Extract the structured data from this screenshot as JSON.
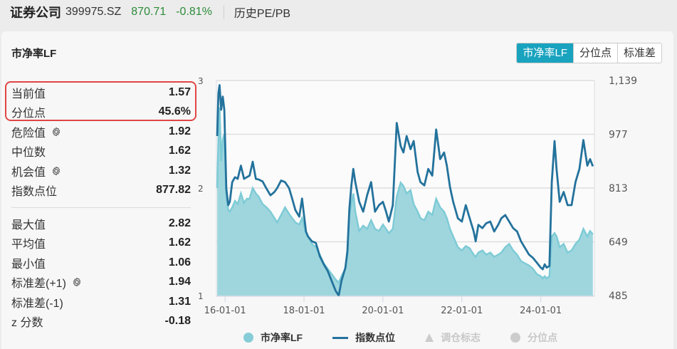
{
  "header": {
    "name": "证券公司",
    "code": "399975.SZ",
    "price": "870.71",
    "change": "-0.81%",
    "link": "历史PE/PB"
  },
  "card": {
    "title": "市净率LF",
    "tabs": [
      {
        "label": "市净率LF",
        "active": true
      },
      {
        "label": "分位点",
        "active": false
      },
      {
        "label": "标准差",
        "active": false
      }
    ]
  },
  "stats": {
    "top": [
      {
        "label": "当前值",
        "value": "1.57",
        "gear": false
      },
      {
        "label": "分位点",
        "value": "45.6%",
        "gear": false
      },
      {
        "label": "危险值",
        "value": "1.92",
        "gear": true
      },
      {
        "label": "中位数",
        "value": "1.62",
        "gear": false
      },
      {
        "label": "机会值",
        "value": "1.32",
        "gear": true
      },
      {
        "label": "指数点位",
        "value": "877.82",
        "gear": false
      }
    ],
    "bottom": [
      {
        "label": "最大值",
        "value": "2.82",
        "gear": false
      },
      {
        "label": "平均值",
        "value": "1.62",
        "gear": false
      },
      {
        "label": "最小值",
        "value": "1.06",
        "gear": false
      },
      {
        "label": "标准差(+1)",
        "value": "1.94",
        "gear": true
      },
      {
        "label": "标准差(-1)",
        "value": "1.31",
        "gear": false
      },
      {
        "label": "z 分数",
        "value": "-0.18",
        "gear": false
      }
    ]
  },
  "colors": {
    "pb_fill": "#9fd6de",
    "pb_line": "#7ecbd6",
    "index_line": "#23729c",
    "tab_active": "#19a3bf",
    "highlight": "#e24545",
    "grid": "#dedede"
  },
  "legend": [
    {
      "label": "市净率LF",
      "shape": "dot",
      "color": "#86cdd8",
      "enabled": true
    },
    {
      "label": "指数点位",
      "shape": "line",
      "color": "#23729c",
      "enabled": true
    },
    {
      "label": "调仓标志",
      "shape": "triangle",
      "color": "#cccccc",
      "enabled": false
    },
    {
      "label": "分位点",
      "shape": "dot",
      "color": "#cccccc",
      "enabled": false
    }
  ],
  "chart_data": {
    "type": "area",
    "title": "市净率LF",
    "x_ticks": [
      "16-01-01",
      "18-01-01",
      "20-01-01",
      "22-01-01",
      "24-01-01"
    ],
    "y_left": {
      "ticks": [
        "1",
        "2",
        "3"
      ],
      "range": [
        1,
        3
      ]
    },
    "y_right": {
      "ticks": [
        "485",
        "649",
        "813",
        "977",
        "1,139"
      ],
      "range": [
        485,
        1139
      ]
    },
    "grid": true,
    "legend_position": "bottom",
    "x_range": [
      "15-10",
      "25-05"
    ],
    "series": [
      {
        "name": "市净率LF",
        "axis": "left",
        "type": "area",
        "points": [
          [
            2015.8,
            2.0
          ],
          [
            2015.83,
            2.45
          ],
          [
            2015.86,
            2.75
          ],
          [
            2015.9,
            2.25
          ],
          [
            2015.94,
            2.45
          ],
          [
            2015.98,
            2.5
          ],
          [
            2016.03,
            1.92
          ],
          [
            2016.08,
            1.8
          ],
          [
            2016.12,
            1.78
          ],
          [
            2016.18,
            1.82
          ],
          [
            2016.25,
            1.88
          ],
          [
            2016.32,
            1.85
          ],
          [
            2016.4,
            1.95
          ],
          [
            2016.48,
            1.86
          ],
          [
            2016.55,
            1.9
          ],
          [
            2016.62,
            1.9
          ],
          [
            2016.7,
            2.0
          ],
          [
            2016.78,
            1.95
          ],
          [
            2016.85,
            1.92
          ],
          [
            2016.95,
            1.85
          ],
          [
            2017.05,
            1.82
          ],
          [
            2017.15,
            1.78
          ],
          [
            2017.25,
            1.72
          ],
          [
            2017.32,
            1.68
          ],
          [
            2017.42,
            1.75
          ],
          [
            2017.52,
            1.82
          ],
          [
            2017.62,
            1.76
          ],
          [
            2017.7,
            1.72
          ],
          [
            2017.78,
            1.68
          ],
          [
            2017.88,
            1.66
          ],
          [
            2017.95,
            1.72
          ],
          [
            2018.05,
            1.58
          ],
          [
            2018.1,
            1.55
          ],
          [
            2018.2,
            1.48
          ],
          [
            2018.3,
            1.45
          ],
          [
            2018.4,
            1.38
          ],
          [
            2018.5,
            1.3
          ],
          [
            2018.6,
            1.25
          ],
          [
            2018.7,
            1.2
          ],
          [
            2018.8,
            1.15
          ],
          [
            2018.88,
            1.12
          ],
          [
            2018.95,
            1.18
          ],
          [
            2019.05,
            1.25
          ],
          [
            2019.1,
            1.38
          ],
          [
            2019.15,
            1.75
          ],
          [
            2019.2,
            1.85
          ],
          [
            2019.25,
            1.95
          ],
          [
            2019.3,
            1.78
          ],
          [
            2019.4,
            1.6
          ],
          [
            2019.5,
            1.65
          ],
          [
            2019.6,
            1.62
          ],
          [
            2019.7,
            1.7
          ],
          [
            2019.8,
            1.62
          ],
          [
            2019.9,
            1.6
          ],
          [
            2020.0,
            1.66
          ],
          [
            2020.08,
            1.62
          ],
          [
            2020.15,
            1.58
          ],
          [
            2020.25,
            1.62
          ],
          [
            2020.35,
            1.92
          ],
          [
            2020.45,
            2.05
          ],
          [
            2020.52,
            2.02
          ],
          [
            2020.6,
            1.95
          ],
          [
            2020.7,
            1.98
          ],
          [
            2020.78,
            1.85
          ],
          [
            2020.88,
            1.78
          ],
          [
            2020.95,
            1.72
          ],
          [
            2021.05,
            1.7
          ],
          [
            2021.15,
            1.78
          ],
          [
            2021.25,
            1.75
          ],
          [
            2021.35,
            1.9
          ],
          [
            2021.45,
            1.82
          ],
          [
            2021.55,
            1.78
          ],
          [
            2021.62,
            1.72
          ],
          [
            2021.7,
            1.62
          ],
          [
            2021.78,
            1.55
          ],
          [
            2021.9,
            1.45
          ],
          [
            2022.0,
            1.42
          ],
          [
            2022.1,
            1.46
          ],
          [
            2022.2,
            1.44
          ],
          [
            2022.3,
            1.38
          ],
          [
            2022.35,
            1.36
          ],
          [
            2022.42,
            1.4
          ],
          [
            2022.52,
            1.42
          ],
          [
            2022.62,
            1.38
          ],
          [
            2022.72,
            1.4
          ],
          [
            2022.82,
            1.36
          ],
          [
            2022.92,
            1.38
          ],
          [
            2023.0,
            1.4
          ],
          [
            2023.1,
            1.45
          ],
          [
            2023.2,
            1.48
          ],
          [
            2023.3,
            1.42
          ],
          [
            2023.4,
            1.38
          ],
          [
            2023.5,
            1.32
          ],
          [
            2023.6,
            1.3
          ],
          [
            2023.7,
            1.28
          ],
          [
            2023.8,
            1.25
          ],
          [
            2023.9,
            1.2
          ],
          [
            2024.0,
            1.18
          ],
          [
            2024.05,
            1.16
          ],
          [
            2024.1,
            1.18
          ],
          [
            2024.15,
            1.16
          ],
          [
            2024.22,
            1.18
          ],
          [
            2024.28,
            1.55
          ],
          [
            2024.35,
            1.58
          ],
          [
            2024.4,
            1.55
          ],
          [
            2024.48,
            1.45
          ],
          [
            2024.58,
            1.48
          ],
          [
            2024.68,
            1.4
          ],
          [
            2024.78,
            1.42
          ],
          [
            2024.88,
            1.48
          ],
          [
            2024.98,
            1.52
          ],
          [
            2025.08,
            1.62
          ],
          [
            2025.18,
            1.55
          ],
          [
            2025.25,
            1.6
          ],
          [
            2025.32,
            1.57
          ]
        ]
      },
      {
        "name": "指数点位",
        "axis": "right",
        "type": "line",
        "points": [
          [
            2015.8,
            970
          ],
          [
            2015.83,
            1100
          ],
          [
            2015.86,
            1125
          ],
          [
            2015.9,
            1050
          ],
          [
            2015.94,
            1090
          ],
          [
            2015.98,
            1050
          ],
          [
            2016.03,
            810
          ],
          [
            2016.08,
            760
          ],
          [
            2016.12,
            770
          ],
          [
            2016.18,
            830
          ],
          [
            2016.25,
            845
          ],
          [
            2016.32,
            840
          ],
          [
            2016.4,
            880
          ],
          [
            2016.48,
            840
          ],
          [
            2016.55,
            845
          ],
          [
            2016.62,
            850
          ],
          [
            2016.7,
            892
          ],
          [
            2016.78,
            840
          ],
          [
            2016.85,
            838
          ],
          [
            2016.95,
            832
          ],
          [
            2017.05,
            810
          ],
          [
            2017.15,
            790
          ],
          [
            2017.25,
            800
          ],
          [
            2017.32,
            812
          ],
          [
            2017.42,
            835
          ],
          [
            2017.52,
            830
          ],
          [
            2017.62,
            812
          ],
          [
            2017.7,
            780
          ],
          [
            2017.78,
            745
          ],
          [
            2017.88,
            725
          ],
          [
            2017.95,
            780
          ],
          [
            2018.05,
            680
          ],
          [
            2018.1,
            665
          ],
          [
            2018.2,
            650
          ],
          [
            2018.3,
            645
          ],
          [
            2018.4,
            605
          ],
          [
            2018.5,
            580
          ],
          [
            2018.6,
            560
          ],
          [
            2018.7,
            530
          ],
          [
            2018.8,
            500
          ],
          [
            2018.88,
            485
          ],
          [
            2018.95,
            530
          ],
          [
            2019.05,
            570
          ],
          [
            2019.1,
            620
          ],
          [
            2019.15,
            750
          ],
          [
            2019.2,
            820
          ],
          [
            2019.25,
            870
          ],
          [
            2019.3,
            830
          ],
          [
            2019.4,
            770
          ],
          [
            2019.5,
            740
          ],
          [
            2019.6,
            790
          ],
          [
            2019.7,
            830
          ],
          [
            2019.8,
            740
          ],
          [
            2019.9,
            760
          ],
          [
            2020.0,
            770
          ],
          [
            2020.08,
            740
          ],
          [
            2020.15,
            710
          ],
          [
            2020.25,
            760
          ],
          [
            2020.35,
            1010
          ],
          [
            2020.45,
            940
          ],
          [
            2020.52,
            920
          ],
          [
            2020.6,
            970
          ],
          [
            2020.7,
            930
          ],
          [
            2020.78,
            955
          ],
          [
            2020.88,
            860
          ],
          [
            2020.95,
            830
          ],
          [
            2021.05,
            820
          ],
          [
            2021.15,
            870
          ],
          [
            2021.25,
            850
          ],
          [
            2021.35,
            990
          ],
          [
            2021.45,
            900
          ],
          [
            2021.55,
            920
          ],
          [
            2021.62,
            880
          ],
          [
            2021.7,
            815
          ],
          [
            2021.78,
            770
          ],
          [
            2021.9,
            720
          ],
          [
            2022.0,
            710
          ],
          [
            2022.1,
            760
          ],
          [
            2022.2,
            720
          ],
          [
            2022.3,
            680
          ],
          [
            2022.35,
            650
          ],
          [
            2022.42,
            700
          ],
          [
            2022.52,
            690
          ],
          [
            2022.62,
            705
          ],
          [
            2022.72,
            710
          ],
          [
            2022.82,
            680
          ],
          [
            2022.92,
            700
          ],
          [
            2023.0,
            720
          ],
          [
            2023.1,
            730
          ],
          [
            2023.2,
            710
          ],
          [
            2023.3,
            690
          ],
          [
            2023.4,
            680
          ],
          [
            2023.5,
            650
          ],
          [
            2023.6,
            630
          ],
          [
            2023.7,
            610
          ],
          [
            2023.8,
            600
          ],
          [
            2023.9,
            585
          ],
          [
            2024.0,
            570
          ],
          [
            2024.05,
            565
          ],
          [
            2024.1,
            580
          ],
          [
            2024.15,
            570
          ],
          [
            2024.22,
            575
          ],
          [
            2024.28,
            830
          ],
          [
            2024.35,
            955
          ],
          [
            2024.4,
            870
          ],
          [
            2024.48,
            770
          ],
          [
            2024.58,
            800
          ],
          [
            2024.68,
            760
          ],
          [
            2024.78,
            760
          ],
          [
            2024.88,
            830
          ],
          [
            2024.98,
            870
          ],
          [
            2025.08,
            958
          ],
          [
            2025.18,
            880
          ],
          [
            2025.25,
            900
          ],
          [
            2025.32,
            878
          ]
        ]
      }
    ]
  }
}
